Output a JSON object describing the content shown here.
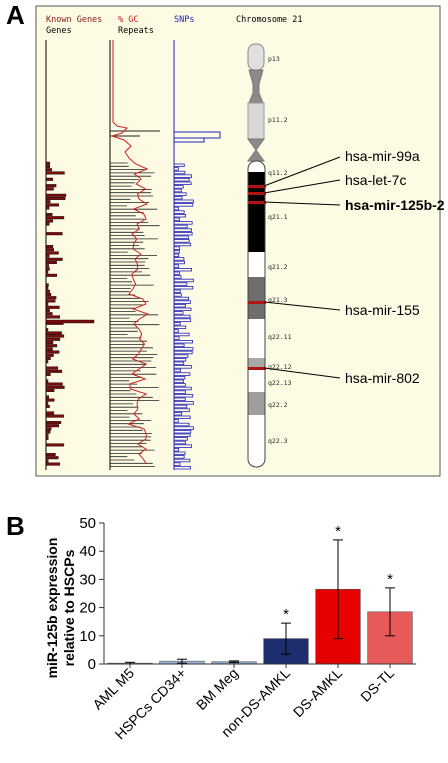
{
  "panel_a": {
    "letter": "A",
    "headers": {
      "known_genes": "Known Genes",
      "genes": "Genes",
      "gc": "% GC",
      "repeats": "Repeats",
      "snps": "SNPs",
      "chromosome": "Chromosome 21"
    },
    "bands": [
      "p13",
      "p11.2",
      "q11.2",
      "q21.1",
      "q21.2",
      "q21.3",
      "q22.11",
      "q22.12",
      "q22.13",
      "q22.2",
      "q22.3"
    ],
    "mirnas": [
      {
        "label": "hsa-mir-99a",
        "bold": false
      },
      {
        "label": "hsa-let-7c",
        "bold": false
      },
      {
        "label": "hsa-mir-125b-2",
        "bold": true
      },
      {
        "label": "hsa-mir-155",
        "bold": false
      },
      {
        "label": "hsa-mir-802",
        "bold": false
      }
    ],
    "colors": {
      "genes": "#7a0c0c",
      "gc": "#cc2222",
      "snps": "#2222bb",
      "background": "#fdfbe4",
      "mirna_mark": "#b01515"
    }
  },
  "chart_data": {
    "type": "bar",
    "panel_letter": "B",
    "categories": [
      "AML M5",
      "HSPCs CD34+",
      "BM Meg",
      "non-DS-AMKL",
      "DS-AMKL",
      "DS-TL"
    ],
    "values": [
      0.3,
      1.0,
      0.8,
      9.0,
      26.5,
      18.5
    ],
    "errors": [
      0.3,
      0.7,
      0.3,
      5.5,
      17.5,
      8.5
    ],
    "significant": [
      false,
      false,
      false,
      true,
      true,
      true
    ],
    "star": "*",
    "colors": [
      "#c6d49a",
      "#9fb5d6",
      "#8fa8cc",
      "#1e2d6e",
      "#e60000",
      "#e85a5a"
    ],
    "ylabel_line1": "miR-125b expression",
    "ylabel_line2": "relative to HSCPs",
    "ylim": [
      0,
      50
    ],
    "yticks": [
      0,
      10,
      20,
      30,
      40,
      50
    ],
    "grid": false
  }
}
